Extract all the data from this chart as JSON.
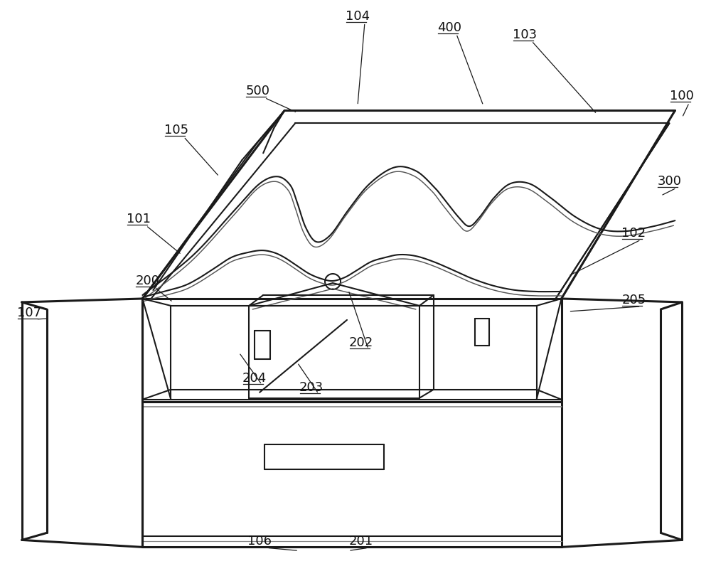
{
  "bg_color": "#ffffff",
  "line_color": "#1a1a1a",
  "lw": 1.5,
  "lw2": 2.2,
  "figsize": [
    10.0,
    8.1
  ],
  "dpi": 100,
  "labels": [
    [
      "100",
      960,
      135,
      960,
      165
    ],
    [
      "103",
      738,
      48,
      840,
      160
    ],
    [
      "104",
      503,
      22,
      503,
      148
    ],
    [
      "400",
      632,
      38,
      680,
      148
    ],
    [
      "500",
      362,
      128,
      418,
      158
    ],
    [
      "105",
      248,
      183,
      308,
      248
    ],
    [
      "300",
      942,
      255,
      930,
      275
    ],
    [
      "102",
      892,
      328,
      800,
      388
    ],
    [
      "101",
      195,
      308,
      255,
      358
    ],
    [
      "200",
      207,
      395,
      243,
      425
    ],
    [
      "107",
      40,
      440,
      68,
      448
    ],
    [
      "205",
      892,
      422,
      800,
      438
    ],
    [
      "202",
      508,
      482,
      490,
      408
    ],
    [
      "204",
      358,
      532,
      336,
      496
    ],
    [
      "203",
      438,
      545,
      418,
      510
    ],
    [
      "106",
      365,
      762,
      420,
      775
    ],
    [
      "201",
      508,
      762,
      490,
      775
    ]
  ]
}
